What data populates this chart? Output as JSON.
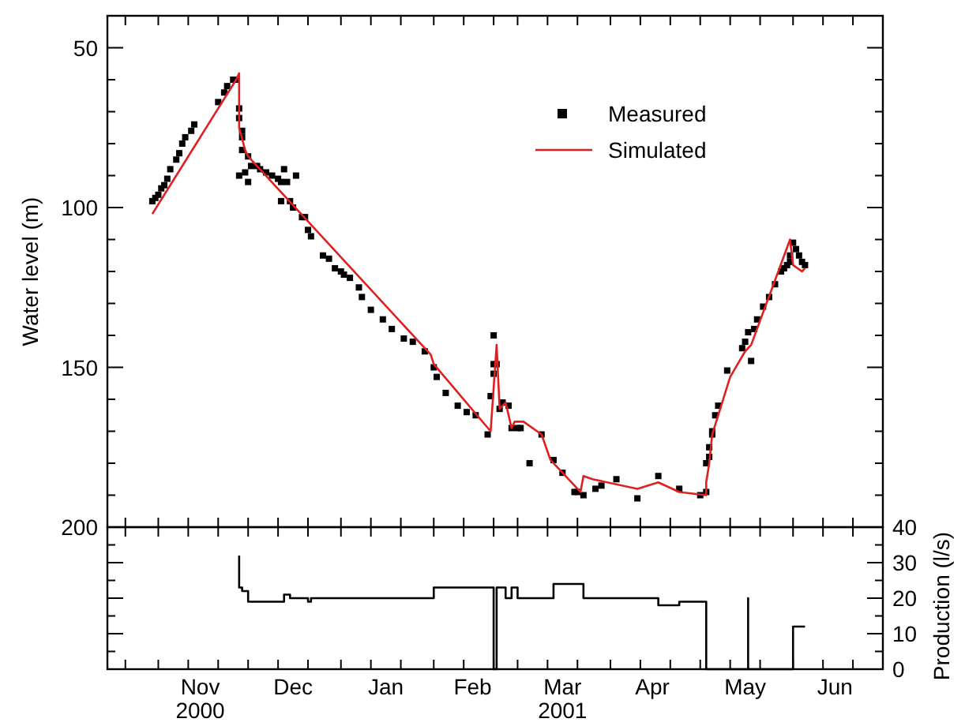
{
  "chart_data": [
    {
      "type": "line",
      "ylabel": "Water level (m)",
      "xlim": [
        "2000-10-15",
        "2001-07-01"
      ],
      "xticks": [
        {
          "value": "2000-10-21",
          "label": null
        },
        {
          "value": "2000-11-01",
          "label": null
        },
        {
          "value": "2000-11-11",
          "label": null
        },
        {
          "value": "2000-11-21",
          "label": null
        },
        {
          "value": "2000-12-01",
          "label": null
        },
        {
          "value": "2000-12-11",
          "label": null
        },
        {
          "value": "2000-12-21",
          "label": null
        },
        {
          "value": "2001-01-01",
          "label": null
        },
        {
          "value": "2001-01-11",
          "label": null
        },
        {
          "value": "2001-01-21",
          "label": null
        },
        {
          "value": "2001-02-01",
          "label": null
        },
        {
          "value": "2001-02-11",
          "label": null
        },
        {
          "value": "2001-02-21",
          "label": null
        },
        {
          "value": "2001-03-01",
          "label": null
        },
        {
          "value": "2001-03-11",
          "label": null
        },
        {
          "value": "2001-03-21",
          "label": null
        },
        {
          "value": "2001-04-01",
          "label": null
        },
        {
          "value": "2001-04-11",
          "label": null
        },
        {
          "value": "2001-04-21",
          "label": null
        },
        {
          "value": "2001-05-01",
          "label": null
        },
        {
          "value": "2001-05-11",
          "label": null
        },
        {
          "value": "2001-05-21",
          "label": null
        },
        {
          "value": "2001-06-01",
          "label": null
        },
        {
          "value": "2001-06-11",
          "label": null
        },
        {
          "value": "2001-06-21",
          "label": null
        }
      ],
      "ylim": [
        200,
        40
      ],
      "yticks": [
        {
          "value": 60,
          "label": null
        },
        {
          "value": 70,
          "label": null
        },
        {
          "value": 80,
          "label": null
        },
        {
          "value": 90,
          "label": null
        },
        {
          "value": 110,
          "label": null
        },
        {
          "value": 120,
          "label": null
        },
        {
          "value": 130,
          "label": null
        },
        {
          "value": 140,
          "label": null
        },
        {
          "value": 160,
          "label": null
        },
        {
          "value": 170,
          "label": null
        },
        {
          "value": 180,
          "label": null
        },
        {
          "value": 190,
          "label": null
        },
        50,
        100,
        150,
        200
      ],
      "tick_labels": "y",
      "legend": "top right",
      "series": [
        {
          "name": "Measured",
          "type": "scatter",
          "marker": "square",
          "color": "#000000",
          "x": [
            "2000-10-30",
            "2000-10-31",
            "2000-11-01",
            "2000-11-02",
            "2000-11-03",
            "2000-11-04",
            "2000-11-05",
            "2000-11-07",
            "2000-11-08",
            "2000-11-09",
            "2000-11-10",
            "2000-11-12",
            "2000-11-13",
            "2000-11-21",
            "2000-11-23",
            "2000-11-24",
            "2000-11-26",
            "2000-11-27",
            "2000-11-28",
            "2000-11-28",
            "2000-11-28",
            "2000-11-29",
            "2000-11-29",
            "2000-11-29",
            "2000-11-30",
            "2000-12-01",
            "2000-12-01",
            "2000-12-02",
            "2000-12-04",
            "2000-12-05",
            "2000-12-07",
            "2000-12-09",
            "2000-12-11",
            "2000-12-12",
            "2000-12-12",
            "2000-12-13",
            "2000-12-14",
            "2000-12-15",
            "2000-12-16",
            "2000-12-17",
            "2000-12-19",
            "2000-12-20",
            "2000-12-21",
            "2000-12-22",
            "2000-12-26",
            "2000-12-28",
            "2000-12-30",
            "2001-01-01",
            "2001-01-02",
            "2001-01-04",
            "2001-01-07",
            "2001-01-08",
            "2001-01-11",
            "2001-01-15",
            "2001-01-18",
            "2001-01-22",
            "2001-01-25",
            "2001-01-29",
            "2001-02-01",
            "2001-02-02",
            "2001-02-05",
            "2001-02-09",
            "2001-02-12",
            "2001-02-15",
            "2001-02-19",
            "2001-02-20",
            "2001-02-21",
            "2001-02-21",
            "2001-02-21",
            "2001-02-22",
            "2001-02-23",
            "2001-02-24",
            "2001-02-26",
            "2001-02-27",
            "2001-03-01",
            "2001-03-02",
            "2001-03-05",
            "2001-03-09",
            "2001-03-13",
            "2001-03-16",
            "2001-03-20",
            "2001-03-21",
            "2001-03-23",
            "2001-03-27",
            "2001-03-29",
            "2001-04-03",
            "2001-04-10",
            "2001-04-17",
            "2001-04-24",
            "2001-05-01",
            "2001-05-03",
            "2001-05-03",
            "2001-05-04",
            "2001-05-04",
            "2001-05-05",
            "2001-05-05",
            "2001-05-06",
            "2001-05-07",
            "2001-05-10",
            "2001-05-15",
            "2001-05-16",
            "2001-05-17",
            "2001-05-18",
            "2001-05-19",
            "2001-05-20",
            "2001-05-22",
            "2001-05-24",
            "2001-05-26",
            "2001-05-28",
            "2001-05-29",
            "2001-05-30",
            "2001-05-31",
            "2001-05-31",
            "2001-06-01",
            "2001-06-02",
            "2001-06-03",
            "2001-06-04",
            "2001-06-05"
          ],
          "values": [
            98,
            97,
            96,
            94,
            93,
            91,
            88,
            85,
            83,
            80,
            78,
            76,
            74,
            67,
            64,
            62,
            60,
            60,
            69,
            72,
            90,
            76,
            78,
            82,
            89,
            92,
            84,
            87,
            87,
            88,
            89,
            90,
            91,
            92,
            98,
            88,
            92,
            98,
            100,
            90,
            103,
            103,
            107,
            109,
            115,
            116,
            119,
            120,
            121,
            122,
            125,
            128,
            132,
            135,
            138,
            141,
            142,
            145,
            150,
            153,
            158,
            162,
            164,
            165,
            171,
            159,
            140,
            152,
            149,
            149,
            163,
            161,
            162,
            169,
            169,
            169,
            180,
            171,
            179,
            183,
            189,
            189,
            190,
            188,
            187,
            185,
            191,
            184,
            188,
            190,
            189,
            180,
            178,
            175,
            171,
            170,
            165,
            162,
            151,
            144,
            142,
            139,
            148,
            138,
            135,
            131,
            128,
            124,
            120,
            119,
            118,
            117,
            115,
            111,
            113,
            115,
            117,
            118
          ]
        },
        {
          "name": "Simulated",
          "type": "line",
          "color": "#e02020",
          "x": [
            "2000-10-30",
            "2000-11-27",
            "2000-11-28",
            "2000-11-28",
            "2000-11-30",
            "2000-12-01",
            "2001-01-29",
            "2001-01-31",
            "2001-02-01",
            "2001-02-20",
            "2001-02-22",
            "2001-02-23",
            "2001-02-25",
            "2001-02-27",
            "2001-02-28",
            "2001-03-03",
            "2001-03-09",
            "2001-03-12",
            "2001-03-22",
            "2001-03-23",
            "2001-03-26",
            "2001-04-10",
            "2001-04-17",
            "2001-04-24",
            "2001-05-03",
            "2001-05-03",
            "2001-05-04",
            "2001-05-05",
            "2001-05-08",
            "2001-05-11",
            "2001-05-16",
            "2001-05-18",
            "2001-05-31",
            "2001-06-01",
            "2001-06-04",
            "2001-06-05"
          ],
          "values": [
            102,
            60,
            58,
            75,
            82,
            84,
            144,
            146,
            149,
            170,
            143,
            163,
            161,
            169,
            167,
            167,
            171,
            179,
            189,
            184,
            185,
            188,
            186,
            189,
            190,
            186,
            180,
            171,
            162,
            153,
            145,
            143,
            110,
            118,
            120,
            119
          ]
        }
      ]
    },
    {
      "type": "step",
      "ylabel": "Production (l/s)",
      "xlim": [
        "2000-10-15",
        "2001-07-01"
      ],
      "xticks": [
        {
          "value": "2000-10-21",
          "label": null
        },
        {
          "value": "2000-11-01",
          "label": null
        },
        {
          "value": "2000-11-11",
          "label": null
        },
        {
          "value": "2000-11-21",
          "label": null
        },
        {
          "value": "2000-12-01",
          "label": null
        },
        {
          "value": "2000-12-11",
          "label": null
        },
        {
          "value": "2000-12-21",
          "label": null
        },
        {
          "value": "2001-01-01",
          "label": null
        },
        {
          "value": "2001-01-11",
          "label": null
        },
        {
          "value": "2001-01-21",
          "label": null
        },
        {
          "value": "2001-02-01",
          "label": null
        },
        {
          "value": "2001-02-11",
          "label": null
        },
        {
          "value": "2001-02-21",
          "label": null
        },
        {
          "value": "2001-03-01",
          "label": null
        },
        {
          "value": "2001-03-11",
          "label": null
        },
        {
          "value": "2001-03-21",
          "label": null
        },
        {
          "value": "2001-04-01",
          "label": null
        },
        {
          "value": "2001-04-11",
          "label": null
        },
        {
          "value": "2001-04-21",
          "label": null
        },
        {
          "value": "2001-05-01",
          "label": null
        },
        {
          "value": "2001-05-11",
          "label": null
        },
        {
          "value": "2001-05-21",
          "label": null
        },
        {
          "value": "2001-06-01",
          "label": null
        },
        {
          "value": "2001-06-11",
          "label": null
        },
        {
          "value": "2001-06-21",
          "label": null
        },
        {
          "value": "2000-11-15",
          "label": "Nov\n2000"
        },
        {
          "value": "2000-12-16",
          "label": "Dec"
        },
        {
          "value": "2001-01-16",
          "label": "Jan"
        },
        {
          "value": "2001-02-14",
          "label": "Feb"
        },
        {
          "value": "2001-03-16",
          "label": "Mar\n2001"
        },
        {
          "value": "2001-04-15",
          "label": "Apr"
        },
        {
          "value": "2001-05-16",
          "label": "May"
        },
        {
          "value": "2001-06-15",
          "label": "Jun"
        }
      ],
      "ylim": [
        0,
        40
      ],
      "yticks": [
        {
          "value": 5,
          "label": null
        },
        {
          "value": 15,
          "label": null
        },
        {
          "value": 25,
          "label": null
        },
        {
          "value": 35,
          "label": null
        },
        0,
        10,
        20,
        30,
        40
      ],
      "series": [
        {
          "color": "#000000",
          "x": [
            "2000-11-28",
            "2000-11-28",
            "2000-11-29",
            "2000-12-01",
            "2000-12-13",
            "2000-12-15",
            "2000-12-21",
            "2000-12-22",
            "2001-02-01",
            "2001-02-21",
            "2001-02-22",
            "2001-02-25",
            "2001-02-27",
            "2001-03-01",
            "2001-03-13",
            "2001-03-23",
            "2001-04-17",
            "2001-04-24",
            "2001-05-03",
            "2001-05-17",
            "2001-05-17",
            "2001-06-01",
            "2001-06-05"
          ],
          "values": [
            32,
            23,
            22,
            19,
            21,
            20,
            19,
            20,
            23,
            0,
            23,
            20,
            23,
            20,
            24,
            20,
            18,
            19,
            0,
            20,
            0,
            12,
            12
          ]
        }
      ]
    }
  ]
}
